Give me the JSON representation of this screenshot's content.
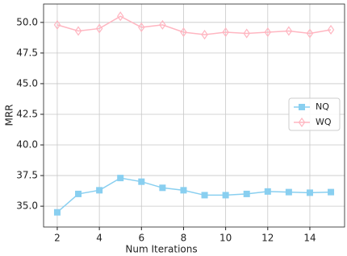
{
  "chart_data": {
    "type": "line",
    "x": [
      2,
      3,
      4,
      5,
      6,
      7,
      8,
      9,
      10,
      11,
      12,
      13,
      14,
      15
    ],
    "series": [
      {
        "name": "NQ",
        "color": "#89cff0",
        "marker": "square",
        "values": [
          34.5,
          36.0,
          36.3,
          37.3,
          37.0,
          36.5,
          36.3,
          35.9,
          35.9,
          36.0,
          36.2,
          36.15,
          36.1,
          36.15
        ]
      },
      {
        "name": "WQ",
        "color": "#ffb6c1",
        "marker": "diamond",
        "values": [
          49.8,
          49.3,
          49.5,
          50.5,
          49.6,
          49.8,
          49.2,
          49.0,
          49.2,
          49.1,
          49.2,
          49.3,
          49.1,
          49.4
        ]
      }
    ],
    "xlabel": "Num Iterations",
    "ylabel": "MRR",
    "xlim": [
      1.35,
      15.65
    ],
    "ylim": [
      33.3,
      51.5
    ],
    "xticks": [
      2,
      4,
      6,
      8,
      10,
      12,
      14
    ],
    "yticks": [
      {
        "value": 35,
        "label": "35.0"
      },
      37.5,
      {
        "value": 40,
        "label": "40.0"
      },
      42.5,
      {
        "value": 45,
        "label": "45.0"
      },
      47.5,
      {
        "value": 50,
        "label": "50.0"
      }
    ],
    "grid": true,
    "legend": "right"
  }
}
